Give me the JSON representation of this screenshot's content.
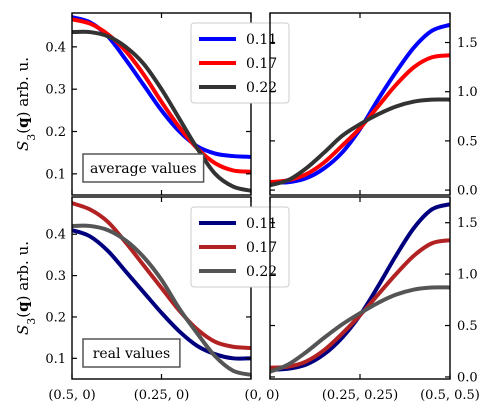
{
  "chart_data": [
    {
      "id": "top-left",
      "type": "line",
      "x_ticks": [],
      "ylabel": "S_3(q) arb. u.",
      "ylim": [
        0.05,
        0.48
      ],
      "y_ticks": [
        0.1,
        0.2,
        0.3,
        0.4
      ],
      "y_tick_labels": [
        "0.1",
        "0.2",
        "0.3",
        "0.4"
      ],
      "y_axis_side": "left",
      "annotation": "average values",
      "legend": {
        "placement": "top-right",
        "entries": [
          "0.11",
          "0.17",
          "0.22"
        ]
      },
      "series": [
        {
          "name": "0.11",
          "color": "#0000ff",
          "x": [
            0,
            0.05,
            0.1,
            0.15,
            0.2,
            0.25,
            0.3,
            0.35,
            0.4,
            0.45,
            0.5
          ],
          "y": [
            0.47,
            0.458,
            0.425,
            0.37,
            0.31,
            0.25,
            0.2,
            0.165,
            0.148,
            0.142,
            0.14
          ]
        },
        {
          "name": "0.17",
          "color": "#ff0000",
          "x": [
            0,
            0.05,
            0.1,
            0.15,
            0.2,
            0.25,
            0.3,
            0.35,
            0.4,
            0.45,
            0.5
          ],
          "y": [
            0.465,
            0.455,
            0.43,
            0.39,
            0.335,
            0.27,
            0.21,
            0.16,
            0.125,
            0.108,
            0.105
          ]
        },
        {
          "name": "0.22",
          "color": "#333333",
          "x": [
            0,
            0.05,
            0.1,
            0.15,
            0.2,
            0.25,
            0.3,
            0.35,
            0.4,
            0.45,
            0.5
          ],
          "y": [
            0.435,
            0.435,
            0.425,
            0.4,
            0.36,
            0.3,
            0.23,
            0.16,
            0.1,
            0.07,
            0.06
          ]
        }
      ]
    },
    {
      "id": "top-right",
      "type": "line",
      "x_ticks": [],
      "ylim": [
        -0.05,
        1.8
      ],
      "y_ticks": [
        0.0,
        0.5,
        1.0,
        1.5
      ],
      "y_tick_labels": [
        "0.0",
        "0.5",
        "1.0",
        "1.5"
      ],
      "y_axis_side": "right",
      "series": [
        {
          "name": "0.11",
          "color": "#0000ff",
          "x": [
            0,
            0.05,
            0.1,
            0.15,
            0.2,
            0.25,
            0.3,
            0.35,
            0.4,
            0.45,
            0.5
          ],
          "y": [
            0.08,
            0.08,
            0.12,
            0.22,
            0.38,
            0.62,
            0.92,
            1.2,
            1.45,
            1.62,
            1.68
          ]
        },
        {
          "name": "0.17",
          "color": "#ff0000",
          "x": [
            0,
            0.05,
            0.1,
            0.15,
            0.2,
            0.25,
            0.3,
            0.35,
            0.4,
            0.45,
            0.5
          ],
          "y": [
            0.08,
            0.1,
            0.16,
            0.28,
            0.45,
            0.63,
            0.85,
            1.07,
            1.25,
            1.35,
            1.37
          ]
        },
        {
          "name": "0.22",
          "color": "#333333",
          "x": [
            0,
            0.05,
            0.1,
            0.15,
            0.2,
            0.25,
            0.3,
            0.35,
            0.4,
            0.45,
            0.5
          ],
          "y": [
            0.05,
            0.1,
            0.22,
            0.38,
            0.55,
            0.67,
            0.77,
            0.85,
            0.9,
            0.92,
            0.92
          ]
        }
      ]
    },
    {
      "id": "bottom-left",
      "type": "line",
      "x_ticks": [
        0,
        0.25,
        0.5
      ],
      "x_tick_labels": [
        "(0.5, 0)",
        "(0.25, 0)",
        ""
      ],
      "ylabel": "S_3(q) arb. u.",
      "ylim": [
        0.05,
        0.49
      ],
      "y_ticks": [
        0.1,
        0.2,
        0.3,
        0.4
      ],
      "y_tick_labels": [
        "0.1",
        "0.2",
        "0.3",
        "0.4"
      ],
      "y_axis_side": "left",
      "annotation": "real values",
      "legend": {
        "placement": "top-right",
        "entries": [
          "0.11",
          "0.17",
          "0.22"
        ]
      },
      "series": [
        {
          "name": "0.11",
          "color": "#00007f",
          "x": [
            0,
            0.05,
            0.1,
            0.15,
            0.2,
            0.25,
            0.3,
            0.35,
            0.4,
            0.45,
            0.5
          ],
          "y": [
            0.41,
            0.395,
            0.36,
            0.31,
            0.26,
            0.21,
            0.165,
            0.13,
            0.11,
            0.1,
            0.1
          ]
        },
        {
          "name": "0.17",
          "color": "#b22222",
          "x": [
            0,
            0.05,
            0.1,
            0.15,
            0.2,
            0.25,
            0.3,
            0.35,
            0.4,
            0.45,
            0.5
          ],
          "y": [
            0.475,
            0.46,
            0.43,
            0.38,
            0.325,
            0.27,
            0.215,
            0.17,
            0.14,
            0.128,
            0.125
          ]
        },
        {
          "name": "0.22",
          "color": "#555555",
          "x": [
            0,
            0.05,
            0.1,
            0.15,
            0.2,
            0.25,
            0.3,
            0.35,
            0.4,
            0.45,
            0.5
          ],
          "y": [
            0.42,
            0.42,
            0.41,
            0.385,
            0.345,
            0.29,
            0.22,
            0.16,
            0.105,
            0.07,
            0.06
          ]
        }
      ]
    },
    {
      "id": "bottom-right",
      "type": "line",
      "x_ticks": [
        0,
        0.25,
        0.5
      ],
      "x_tick_labels": [
        "(0, 0)",
        "(0.25, 0.25)",
        "(0.5, 0.5)"
      ],
      "ylim": [
        -0.02,
        1.75
      ],
      "y_ticks": [
        0.0,
        0.5,
        1.0,
        1.5
      ],
      "y_tick_labels": [
        "0.0",
        "0.5",
        "1.0",
        "1.5"
      ],
      "y_axis_side": "right",
      "series": [
        {
          "name": "0.11",
          "color": "#00007f",
          "x": [
            0,
            0.05,
            0.1,
            0.15,
            0.2,
            0.25,
            0.3,
            0.35,
            0.4,
            0.45,
            0.5
          ],
          "y": [
            0.07,
            0.08,
            0.12,
            0.22,
            0.38,
            0.6,
            0.88,
            1.18,
            1.45,
            1.63,
            1.68
          ]
        },
        {
          "name": "0.17",
          "color": "#b22222",
          "x": [
            0,
            0.05,
            0.1,
            0.15,
            0.2,
            0.25,
            0.3,
            0.35,
            0.4,
            0.45,
            0.5
          ],
          "y": [
            0.09,
            0.1,
            0.15,
            0.26,
            0.42,
            0.6,
            0.8,
            1.0,
            1.18,
            1.3,
            1.33
          ]
        },
        {
          "name": "0.22",
          "color": "#555555",
          "x": [
            0,
            0.05,
            0.1,
            0.15,
            0.2,
            0.25,
            0.3,
            0.35,
            0.4,
            0.45,
            0.5
          ],
          "y": [
            0.05,
            0.12,
            0.24,
            0.38,
            0.51,
            0.62,
            0.72,
            0.8,
            0.85,
            0.87,
            0.87
          ]
        }
      ]
    }
  ]
}
